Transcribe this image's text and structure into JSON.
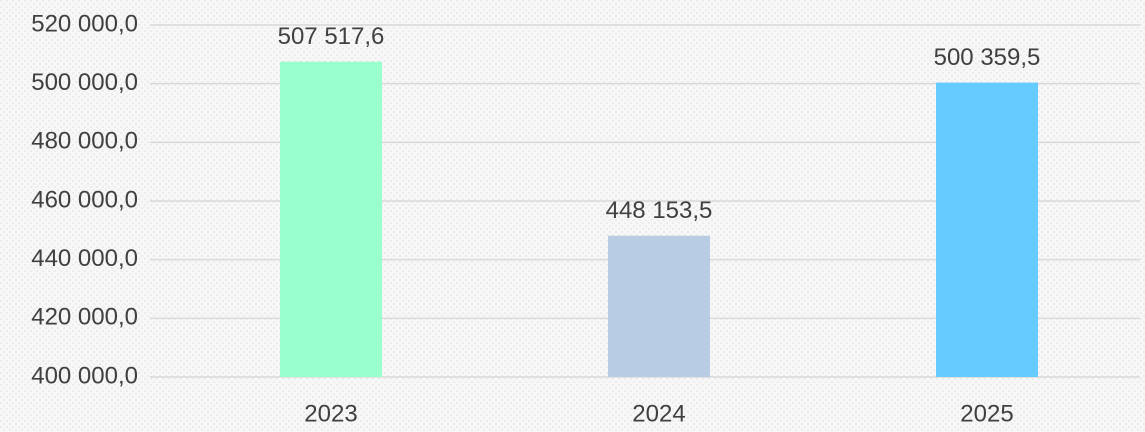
{
  "chart_data": {
    "type": "bar",
    "categories": [
      "2023",
      "2024",
      "2025"
    ],
    "values": [
      507517.6,
      448153.5,
      500359.5
    ],
    "value_labels": [
      "507 517,6",
      "448 153,5",
      "500 359,5"
    ],
    "colors": [
      "#99ffcc",
      "#b8cce4",
      "#66ccff"
    ],
    "ylim": [
      400000,
      520000
    ],
    "yticks": [
      {
        "value": 400000,
        "label": "400 000,0"
      },
      {
        "value": 420000,
        "label": "420 000,0"
      },
      {
        "value": 440000,
        "label": "440 000,0"
      },
      {
        "value": 460000,
        "label": "460 000,0"
      },
      {
        "value": 480000,
        "label": "480 000,0"
      },
      {
        "value": 500000,
        "label": "500 000,0"
      },
      {
        "value": 520000,
        "label": "520 000,0"
      }
    ],
    "grid": true
  }
}
